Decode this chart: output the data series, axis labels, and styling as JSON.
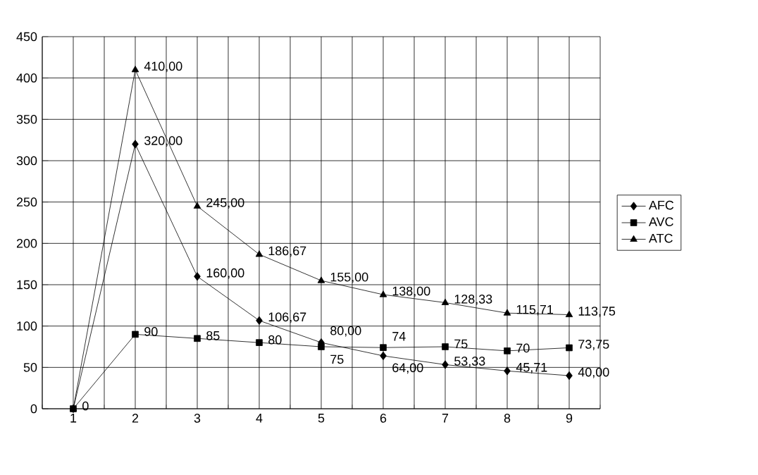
{
  "chart_data": {
    "type": "line",
    "categories": [
      "1",
      "2",
      "3",
      "4",
      "5",
      "6",
      "7",
      "8",
      "9"
    ],
    "ylim": [
      0,
      450
    ],
    "yticks": [
      0,
      50,
      100,
      150,
      200,
      250,
      300,
      350,
      400,
      450
    ],
    "grid": true,
    "legend": "right",
    "series": [
      {
        "name": "AFC",
        "color": "#000000",
        "marker": "diamond",
        "values": [
          0,
          320,
          160,
          106.67,
          80,
          64,
          53.33,
          45.71,
          40
        ],
        "value_labels": [
          null,
          "320,00",
          "160,00",
          "106,67",
          "80,00",
          "64,00",
          "53,33",
          "45,71",
          "40,00"
        ]
      },
      {
        "name": "AVC",
        "color": "#000000",
        "marker": "square",
        "values": [
          0,
          90,
          85,
          80,
          75,
          74,
          75,
          70,
          73.75
        ],
        "value_labels": [
          "0",
          "90",
          "85",
          "80",
          "75",
          "74",
          "75",
          "70",
          "73,75"
        ]
      },
      {
        "name": "ATC",
        "color": "#000000",
        "marker": "triangle",
        "values": [
          0,
          410,
          245,
          186.67,
          155,
          138,
          128.33,
          115.71,
          113.75
        ],
        "value_labels": [
          null,
          "410,00",
          "245,00",
          "186,67",
          "155,00",
          "138,00",
          "128,33",
          "115,71",
          "113,75"
        ]
      }
    ]
  }
}
